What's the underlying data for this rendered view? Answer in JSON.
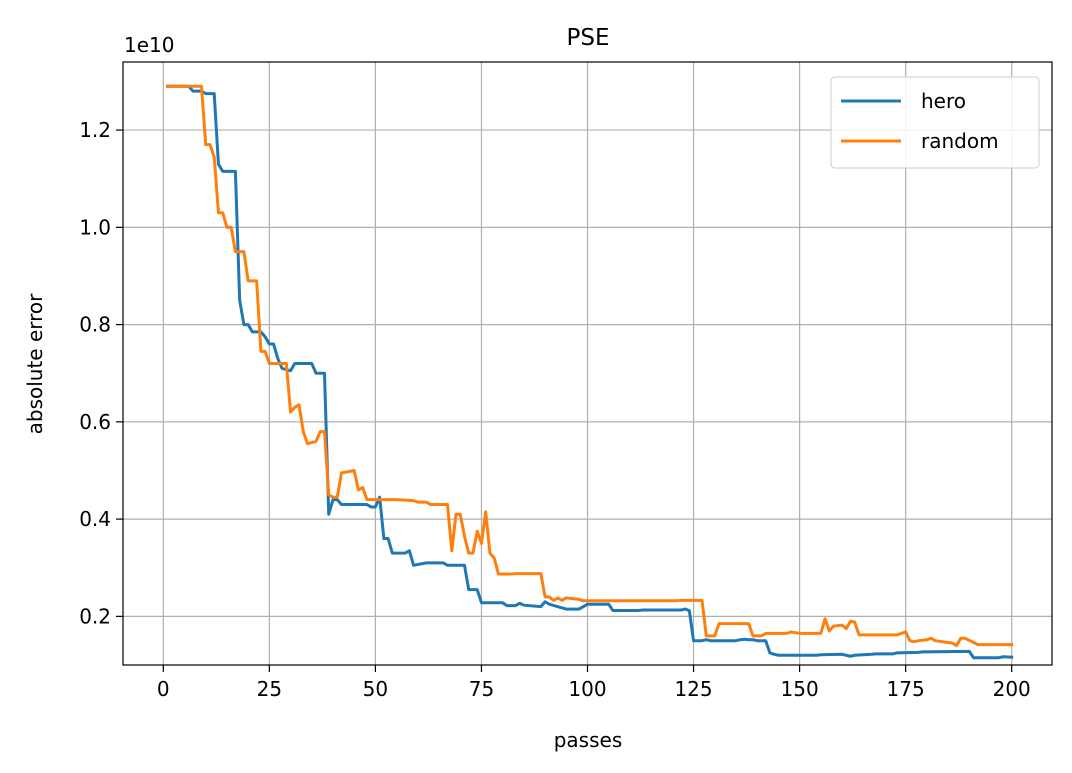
{
  "chart_data": {
    "type": "line",
    "title": "PSE",
    "xlabel": "passes",
    "ylabel": "absolute error",
    "y_offset_label": "1e10",
    "y_scale": 10000000000,
    "xlim": [
      -9.5,
      209.5
    ],
    "ylim": [
      1.0,
      13.4
    ],
    "grid": true,
    "legend_position": "top-right",
    "x_ticks": [
      0,
      25,
      50,
      75,
      100,
      125,
      150,
      175,
      200
    ],
    "x_tick_labels": [
      "0",
      "25",
      "50",
      "75",
      "100",
      "125",
      "150",
      "175",
      "200"
    ],
    "y_ticks": [
      2,
      4,
      6,
      8,
      10,
      12
    ],
    "y_tick_labels": [
      "0.2",
      "0.4",
      "0.6",
      "0.8",
      "1.0",
      "1.2"
    ],
    "series": [
      {
        "name": "hero",
        "color": "#1f77b4",
        "points": [
          [
            1,
            12.9
          ],
          [
            6,
            12.9
          ],
          [
            7,
            12.8
          ],
          [
            9,
            12.8
          ],
          [
            10,
            12.75
          ],
          [
            12,
            12.75
          ],
          [
            13,
            11.3
          ],
          [
            14,
            11.15
          ],
          [
            17,
            11.15
          ],
          [
            18,
            8.5
          ],
          [
            19,
            8.0
          ],
          [
            20,
            8.0
          ],
          [
            21,
            7.85
          ],
          [
            23,
            7.85
          ],
          [
            24,
            7.75
          ],
          [
            25,
            7.6
          ],
          [
            26,
            7.6
          ],
          [
            27,
            7.3
          ],
          [
            28,
            7.1
          ],
          [
            30,
            7.05
          ],
          [
            31,
            7.2
          ],
          [
            35,
            7.2
          ],
          [
            36,
            7.0
          ],
          [
            38,
            7.0
          ],
          [
            39,
            4.1
          ],
          [
            40,
            4.4
          ],
          [
            41,
            4.4
          ],
          [
            42,
            4.3
          ],
          [
            48,
            4.3
          ],
          [
            49,
            4.25
          ],
          [
            50,
            4.25
          ],
          [
            51,
            4.45
          ],
          [
            52,
            3.6
          ],
          [
            53,
            3.6
          ],
          [
            54,
            3.3
          ],
          [
            57,
            3.3
          ],
          [
            58,
            3.35
          ],
          [
            59,
            3.05
          ],
          [
            62,
            3.1
          ],
          [
            66,
            3.1
          ],
          [
            67,
            3.05
          ],
          [
            71,
            3.05
          ],
          [
            72,
            2.55
          ],
          [
            74,
            2.55
          ],
          [
            75,
            2.28
          ],
          [
            80,
            2.28
          ],
          [
            81,
            2.22
          ],
          [
            83,
            2.22
          ],
          [
            84,
            2.27
          ],
          [
            85,
            2.23
          ],
          [
            89,
            2.2
          ],
          [
            90,
            2.3
          ],
          [
            91,
            2.25
          ],
          [
            93,
            2.2
          ],
          [
            95,
            2.15
          ],
          [
            98,
            2.15
          ],
          [
            99,
            2.2
          ],
          [
            100,
            2.25
          ],
          [
            105,
            2.25
          ],
          [
            106,
            2.12
          ],
          [
            112,
            2.12
          ],
          [
            113,
            2.13
          ],
          [
            122,
            2.13
          ],
          [
            123,
            2.15
          ],
          [
            124,
            2.12
          ],
          [
            125,
            1.5
          ],
          [
            127,
            1.5
          ],
          [
            128,
            1.52
          ],
          [
            129,
            1.5
          ],
          [
            135,
            1.5
          ],
          [
            136,
            1.52
          ],
          [
            137,
            1.53
          ],
          [
            138,
            1.52
          ],
          [
            139,
            1.52
          ],
          [
            140,
            1.5
          ],
          [
            142,
            1.5
          ],
          [
            143,
            1.25
          ],
          [
            144,
            1.22
          ],
          [
            145,
            1.2
          ],
          [
            154,
            1.2
          ],
          [
            155,
            1.21
          ],
          [
            160,
            1.22
          ],
          [
            162,
            1.18
          ],
          [
            163,
            1.2
          ],
          [
            167,
            1.22
          ],
          [
            168,
            1.23
          ],
          [
            172,
            1.23
          ],
          [
            173,
            1.25
          ],
          [
            178,
            1.26
          ],
          [
            179,
            1.27
          ],
          [
            190,
            1.28
          ],
          [
            191,
            1.15
          ],
          [
            197,
            1.15
          ],
          [
            198,
            1.17
          ],
          [
            200,
            1.16
          ]
        ]
      },
      {
        "name": "random",
        "color": "#ff7f0e",
        "points": [
          [
            1,
            12.9
          ],
          [
            9,
            12.9
          ],
          [
            10,
            11.7
          ],
          [
            11,
            11.7
          ],
          [
            12,
            11.45
          ],
          [
            13,
            10.3
          ],
          [
            14,
            10.3
          ],
          [
            15,
            10.0
          ],
          [
            16,
            10.0
          ],
          [
            17,
            9.5
          ],
          [
            19,
            9.5
          ],
          [
            20,
            8.9
          ],
          [
            22,
            8.9
          ],
          [
            23,
            7.45
          ],
          [
            24,
            7.45
          ],
          [
            25,
            7.2
          ],
          [
            29,
            7.2
          ],
          [
            30,
            6.2
          ],
          [
            31,
            6.3
          ],
          [
            32,
            6.35
          ],
          [
            33,
            5.8
          ],
          [
            34,
            5.55
          ],
          [
            36,
            5.6
          ],
          [
            37,
            5.8
          ],
          [
            38,
            5.8
          ],
          [
            39,
            4.5
          ],
          [
            40,
            4.45
          ],
          [
            41,
            4.45
          ],
          [
            42,
            4.95
          ],
          [
            45,
            5.0
          ],
          [
            46,
            4.6
          ],
          [
            47,
            4.65
          ],
          [
            48,
            4.4
          ],
          [
            55,
            4.4
          ],
          [
            59,
            4.38
          ],
          [
            60,
            4.35
          ],
          [
            62,
            4.35
          ],
          [
            63,
            4.3
          ],
          [
            67,
            4.3
          ],
          [
            68,
            3.35
          ],
          [
            69,
            4.1
          ],
          [
            70,
            4.1
          ],
          [
            71,
            3.65
          ],
          [
            72,
            3.3
          ],
          [
            73,
            3.3
          ],
          [
            74,
            3.75
          ],
          [
            75,
            3.5
          ],
          [
            76,
            4.15
          ],
          [
            77,
            3.3
          ],
          [
            78,
            3.2
          ],
          [
            79,
            2.87
          ],
          [
            82,
            2.87
          ],
          [
            83,
            2.88
          ],
          [
            89,
            2.88
          ],
          [
            90,
            2.4
          ],
          [
            91,
            2.4
          ],
          [
            92,
            2.33
          ],
          [
            93,
            2.38
          ],
          [
            94,
            2.33
          ],
          [
            95,
            2.38
          ],
          [
            98,
            2.35
          ],
          [
            99,
            2.32
          ],
          [
            112,
            2.32
          ],
          [
            113,
            2.32
          ],
          [
            121,
            2.32
          ],
          [
            122,
            2.33
          ],
          [
            127,
            2.33
          ],
          [
            128,
            1.6
          ],
          [
            130,
            1.6
          ],
          [
            131,
            1.85
          ],
          [
            138,
            1.85
          ],
          [
            139,
            1.6
          ],
          [
            141,
            1.6
          ],
          [
            142,
            1.65
          ],
          [
            147,
            1.65
          ],
          [
            148,
            1.68
          ],
          [
            150,
            1.65
          ],
          [
            155,
            1.65
          ],
          [
            156,
            1.95
          ],
          [
            157,
            1.7
          ],
          [
            158,
            1.8
          ],
          [
            160,
            1.82
          ],
          [
            161,
            1.75
          ],
          [
            162,
            1.9
          ],
          [
            163,
            1.88
          ],
          [
            164,
            1.62
          ],
          [
            173,
            1.62
          ],
          [
            174,
            1.65
          ],
          [
            175,
            1.68
          ],
          [
            176,
            1.5
          ],
          [
            177,
            1.48
          ],
          [
            178,
            1.5
          ],
          [
            180,
            1.52
          ],
          [
            181,
            1.55
          ],
          [
            182,
            1.5
          ],
          [
            186,
            1.45
          ],
          [
            187,
            1.4
          ],
          [
            188,
            1.55
          ],
          [
            189,
            1.55
          ],
          [
            192,
            1.42
          ],
          [
            199,
            1.42
          ],
          [
            200,
            1.42
          ]
        ]
      }
    ]
  }
}
